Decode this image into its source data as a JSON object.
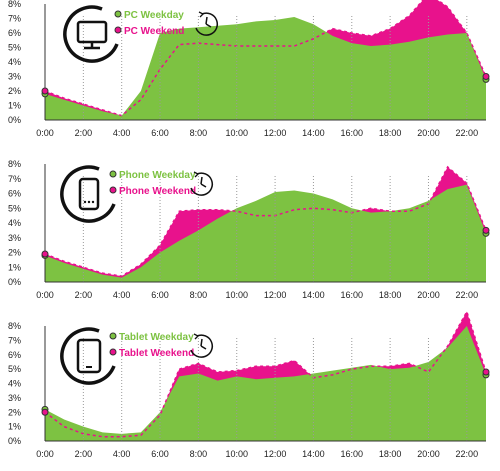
{
  "colors": {
    "weekday": "#7dc242",
    "weekend": "#e8128c",
    "axis": "#333333",
    "text": "#222222",
    "grid": "#9a9a9a",
    "icon": "#111111"
  },
  "chart_data": [
    {
      "type": "area",
      "device_icon": "monitor-icon",
      "clock_icon": "clock-icon",
      "legend_placement": "top-left",
      "x": [
        "0:00",
        "1:00",
        "2:00",
        "3:00",
        "4:00",
        "5:00",
        "6:00",
        "7:00",
        "8:00",
        "9:00",
        "10:00",
        "11:00",
        "12:00",
        "13:00",
        "14:00",
        "15:00",
        "16:00",
        "17:00",
        "18:00",
        "19:00",
        "20:00",
        "21:00",
        "22:00",
        "23:00"
      ],
      "x_tick_labels": [
        "0:00",
        "2:00",
        "4:00",
        "6:00",
        "8:00",
        "10:00",
        "12:00",
        "14:00",
        "16:00",
        "18:00",
        "20:00",
        "22:00"
      ],
      "ylim": [
        0,
        8
      ],
      "y_tick_labels": [
        "0%",
        "1%",
        "2%",
        "3%",
        "4%",
        "5%",
        "6%",
        "7%",
        "8%"
      ],
      "series": [
        {
          "name": "PC  Weekday",
          "values": [
            1.8,
            1.4,
            1.0,
            0.6,
            0.3,
            2.0,
            6.0,
            6.3,
            6.4,
            6.5,
            6.6,
            6.8,
            6.9,
            7.1,
            6.6,
            5.8,
            5.3,
            5.1,
            5.2,
            5.4,
            5.7,
            5.9,
            6.0,
            2.8
          ]
        },
        {
          "name": "PC  Weekend",
          "values": [
            2.0,
            1.5,
            1.1,
            0.7,
            0.3,
            1.4,
            3.5,
            5.2,
            5.3,
            5.2,
            5.1,
            5.1,
            5.1,
            5.1,
            5.6,
            6.3,
            6.0,
            5.8,
            6.3,
            7.2,
            8.7,
            7.8,
            6.0,
            3.0
          ]
        }
      ]
    },
    {
      "type": "area",
      "device_icon": "phone-icon",
      "clock_icon": "clock-icon",
      "legend_placement": "top-left",
      "x": [
        "0:00",
        "1:00",
        "2:00",
        "3:00",
        "4:00",
        "5:00",
        "6:00",
        "7:00",
        "8:00",
        "9:00",
        "10:00",
        "11:00",
        "12:00",
        "13:00",
        "14:00",
        "15:00",
        "16:00",
        "17:00",
        "18:00",
        "19:00",
        "20:00",
        "21:00",
        "22:00",
        "23:00"
      ],
      "x_tick_labels": [
        "0:00",
        "2:00",
        "4:00",
        "6:00",
        "8:00",
        "10:00",
        "12:00",
        "14:00",
        "16:00",
        "18:00",
        "20:00",
        "22:00"
      ],
      "ylim": [
        0,
        8
      ],
      "y_tick_labels": [
        "0%",
        "1%",
        "2%",
        "3%",
        "4%",
        "5%",
        "6%",
        "7%",
        "8%"
      ],
      "series": [
        {
          "name": "Phone Weekday",
          "values": [
            1.8,
            1.3,
            0.9,
            0.5,
            0.3,
            1.0,
            2.0,
            2.8,
            3.5,
            4.3,
            5.0,
            5.5,
            6.1,
            6.2,
            6.0,
            5.6,
            5.0,
            4.7,
            4.8,
            5.0,
            5.5,
            6.3,
            6.6,
            3.3
          ]
        },
        {
          "name": "Phone Weekend",
          "values": [
            1.9,
            1.4,
            1.0,
            0.6,
            0.4,
            1.2,
            2.5,
            4.8,
            4.9,
            4.9,
            4.8,
            4.5,
            4.5,
            4.9,
            5.0,
            4.9,
            4.7,
            5.0,
            4.8,
            4.8,
            5.3,
            7.8,
            6.7,
            3.5
          ]
        }
      ]
    },
    {
      "type": "area",
      "device_icon": "tablet-icon",
      "clock_icon": "clock-icon",
      "legend_placement": "top-left",
      "x": [
        "0:00",
        "1:00",
        "2:00",
        "3:00",
        "4:00",
        "5:00",
        "6:00",
        "7:00",
        "8:00",
        "9:00",
        "10:00",
        "11:00",
        "12:00",
        "13:00",
        "14:00",
        "15:00",
        "16:00",
        "17:00",
        "18:00",
        "19:00",
        "20:00",
        "21:00",
        "22:00",
        "23:00"
      ],
      "x_tick_labels": [
        "0:00",
        "2:00",
        "4:00",
        "6:00",
        "8:00",
        "10:00",
        "12:00",
        "14:00",
        "16:00",
        "18:00",
        "20:00",
        "22:00"
      ],
      "ylim": [
        0,
        8
      ],
      "y_tick_labels": [
        "0%",
        "1%",
        "2%",
        "3%",
        "4%",
        "5%",
        "6%",
        "7%",
        "8%"
      ],
      "series": [
        {
          "name": "Tablet  Weekday",
          "values": [
            2.2,
            1.5,
            1.0,
            0.6,
            0.5,
            0.6,
            2.0,
            4.5,
            4.7,
            4.2,
            4.5,
            4.3,
            4.4,
            4.5,
            4.7,
            4.9,
            5.1,
            5.3,
            5.0,
            5.1,
            5.5,
            6.5,
            8.0,
            4.6
          ]
        },
        {
          "name": "Tablet  Weekend",
          "values": [
            2.0,
            1.0,
            0.5,
            0.3,
            0.3,
            0.4,
            1.8,
            5.0,
            5.4,
            4.8,
            4.9,
            5.2,
            5.2,
            5.6,
            4.4,
            4.6,
            5.0,
            5.2,
            5.2,
            5.4,
            4.8,
            6.6,
            9.0,
            4.8
          ]
        }
      ]
    }
  ]
}
